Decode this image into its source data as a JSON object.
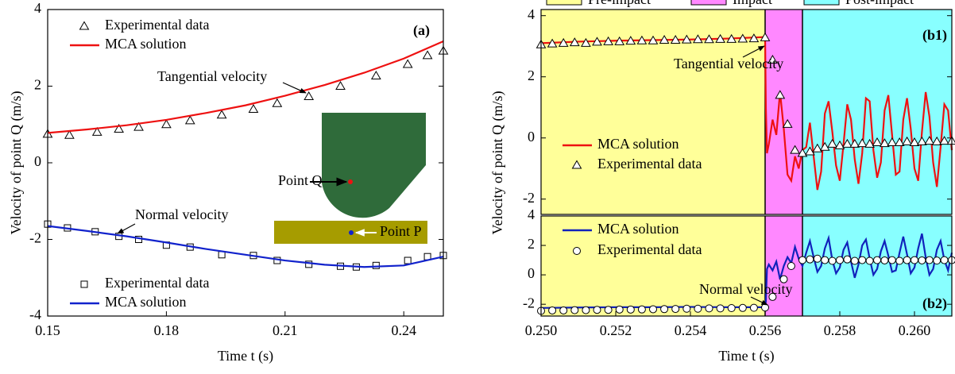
{
  "chart_data": [
    {
      "type": "line",
      "xlabel": "Time t (s)",
      "ylabel": "Velocity of point Q  (m/s)",
      "xlim": [
        0.15,
        0.25
      ],
      "ylim": [
        -4,
        4
      ],
      "xticks": [
        0.15,
        0.18,
        0.21,
        0.24
      ],
      "yticks": [
        -4,
        -2,
        0,
        2,
        4
      ],
      "annotations": [
        "(a)",
        "Tangential velocity",
        "Normal velocity",
        "Point Q",
        "Point P"
      ],
      "series": [
        {
          "name": "Experimental data",
          "style": "triangle",
          "color": "#000000",
          "x": [
            0.15,
            0.1555,
            0.1625,
            0.168,
            0.173,
            0.18,
            0.186,
            0.194,
            0.202,
            0.208,
            0.216,
            0.224,
            0.233,
            0.241,
            0.246,
            0.25
          ],
          "values": [
            0.75,
            0.72,
            0.8,
            0.88,
            0.93,
            1.0,
            1.1,
            1.25,
            1.4,
            1.55,
            1.73,
            2.0,
            2.27,
            2.57,
            2.8,
            2.92
          ]
        },
        {
          "name": "MCA solution",
          "style": "line",
          "color": "#ee1111",
          "x": [
            0.15,
            0.16,
            0.17,
            0.18,
            0.19,
            0.2,
            0.21,
            0.22,
            0.23,
            0.24,
            0.25
          ],
          "values": [
            0.78,
            0.87,
            0.98,
            1.12,
            1.3,
            1.5,
            1.75,
            2.03,
            2.35,
            2.72,
            3.17
          ]
        },
        {
          "name": "Experimental data",
          "style": "square",
          "color": "#000000",
          "x": [
            0.15,
            0.155,
            0.162,
            0.168,
            0.173,
            0.18,
            0.186,
            0.194,
            0.202,
            0.208,
            0.216,
            0.224,
            0.228,
            0.233,
            0.241,
            0.246,
            0.25
          ],
          "values": [
            -1.6,
            -1.7,
            -1.8,
            -1.92,
            -2.0,
            -2.15,
            -2.2,
            -2.4,
            -2.42,
            -2.55,
            -2.65,
            -2.7,
            -2.72,
            -2.68,
            -2.55,
            -2.45,
            -2.42
          ]
        },
        {
          "name": "MCA solution",
          "style": "line",
          "color": "#1122cc",
          "x": [
            0.15,
            0.16,
            0.17,
            0.18,
            0.19,
            0.2,
            0.21,
            0.22,
            0.23,
            0.24,
            0.25
          ],
          "values": [
            -1.65,
            -1.78,
            -1.92,
            -2.08,
            -2.25,
            -2.4,
            -2.55,
            -2.66,
            -2.72,
            -2.68,
            -2.45
          ]
        }
      ]
    },
    {
      "type": "line",
      "xlim": [
        0.25,
        0.261
      ],
      "ylim": [
        -2.5,
        4.2
      ],
      "yticks": [
        -2,
        0,
        2,
        4
      ],
      "annotations": [
        "(b1)",
        "Tangential velocity"
      ],
      "regions": [
        {
          "name": "Pre-impact",
          "color": "#ffff99",
          "start": 0.25,
          "end": 0.256
        },
        {
          "name": "Impact",
          "color": "#ff88ff",
          "start": 0.256,
          "end": 0.257
        },
        {
          "name": "Post-impact",
          "color": "#88ffff",
          "start": 0.257,
          "end": 0.261
        }
      ],
      "series": [
        {
          "name": "MCA solution",
          "style": "line",
          "color": "#ee1111",
          "x": [
            0.25,
            0.251,
            0.252,
            0.253,
            0.254,
            0.255,
            0.256,
            0.25602,
            0.25605,
            0.2561,
            0.2562,
            0.2563,
            0.2564,
            0.2565,
            0.2566,
            0.2567,
            0.2568,
            0.2569,
            0.257,
            0.2571,
            0.2572,
            0.2573,
            0.2574,
            0.2575,
            0.2576,
            0.2577,
            0.2578,
            0.2579,
            0.258,
            0.2581,
            0.2582,
            0.2583,
            0.2584,
            0.2585,
            0.2586,
            0.2587,
            0.2588,
            0.2589,
            0.259,
            0.2591,
            0.2592,
            0.2593,
            0.2594,
            0.2595,
            0.2596,
            0.2597,
            0.2598,
            0.2599,
            0.26,
            0.2601,
            0.2602,
            0.2603,
            0.2604,
            0.2605,
            0.2606,
            0.2607,
            0.2608,
            0.2609,
            0.261
          ],
          "values": [
            3.1,
            3.15,
            3.18,
            3.2,
            3.22,
            3.25,
            3.3,
            1.0,
            -0.5,
            -0.2,
            0.6,
            0.1,
            1.5,
            0.3,
            -1.2,
            -1.4,
            -0.6,
            -1.0,
            -0.4,
            -0.3,
            0.5,
            -0.6,
            -1.7,
            -1.1,
            0.8,
            1.2,
            0.2,
            -0.9,
            -1.4,
            -0.2,
            1.1,
            0.6,
            -0.7,
            -1.5,
            -0.5,
            1.3,
            1.2,
            -0.4,
            -1.3,
            -0.8,
            0.9,
            1.4,
            0.1,
            -1.2,
            -1.1,
            0.6,
            1.3,
            0.3,
            -1.0,
            -1.4,
            0.2,
            1.5,
            0.7,
            -0.8,
            -1.6,
            -0.3,
            1.1,
            0.9,
            -0.4
          ]
        },
        {
          "name": "Experimental data",
          "style": "triangle",
          "color": "#000000",
          "x": [
            0.25,
            0.2503,
            0.2506,
            0.2509,
            0.2512,
            0.2515,
            0.2518,
            0.2521,
            0.2524,
            0.2527,
            0.253,
            0.2533,
            0.2536,
            0.2539,
            0.2542,
            0.2545,
            0.2548,
            0.2551,
            0.2554,
            0.2557,
            0.256,
            0.2562,
            0.2564,
            0.2566,
            0.2568,
            0.257,
            0.2572,
            0.2574,
            0.2576,
            0.2578,
            0.258,
            0.2582,
            0.2584,
            0.2586,
            0.2588,
            0.259,
            0.2592,
            0.2594,
            0.2596,
            0.2598,
            0.26,
            0.2602,
            0.2604,
            0.2606,
            0.2608,
            0.261
          ],
          "values": [
            3.05,
            3.08,
            3.1,
            3.12,
            3.1,
            3.14,
            3.15,
            3.15,
            3.17,
            3.18,
            3.18,
            3.2,
            3.2,
            3.21,
            3.22,
            3.22,
            3.23,
            3.23,
            3.24,
            3.25,
            3.28,
            2.55,
            1.4,
            0.45,
            -0.4,
            -0.5,
            -0.45,
            -0.35,
            -0.3,
            -0.2,
            -0.25,
            -0.2,
            -0.2,
            -0.18,
            -0.2,
            -0.15,
            -0.18,
            -0.15,
            -0.15,
            -0.12,
            -0.15,
            -0.12,
            -0.1,
            -0.12,
            -0.1,
            -0.1
          ]
        }
      ]
    },
    {
      "type": "line",
      "xlabel": "Time t (s)",
      "ylabel": "Velocity of point Q (m/s)",
      "xlim": [
        0.25,
        0.261
      ],
      "ylim": [
        -2.8,
        4
      ],
      "yticks": [
        -2,
        0,
        2,
        4
      ],
      "xticks": [
        {
          "value": 0.25,
          "label": "0.250"
        },
        0.252,
        0.254,
        0.256,
        0.258,
        {
          "value": 0.26,
          "label": "0.260"
        }
      ],
      "annotations": [
        "(b2)",
        "Normal velocity"
      ],
      "series": [
        {
          "name": "MCA solution",
          "style": "line",
          "color": "#1122bb",
          "x": [
            0.25,
            0.251,
            0.252,
            0.253,
            0.254,
            0.255,
            0.256,
            0.25602,
            0.25605,
            0.2561,
            0.2562,
            0.2563,
            0.2564,
            0.2565,
            0.2566,
            0.2567,
            0.2568,
            0.2569,
            0.257,
            0.2571,
            0.2572,
            0.2573,
            0.2574,
            0.2575,
            0.2576,
            0.2577,
            0.2578,
            0.2579,
            0.258,
            0.2581,
            0.2582,
            0.2583,
            0.2584,
            0.2585,
            0.2586,
            0.2587,
            0.2588,
            0.2589,
            0.259,
            0.2591,
            0.2592,
            0.2593,
            0.2594,
            0.2595,
            0.2596,
            0.2597,
            0.2598,
            0.2599,
            0.26,
            0.2601,
            0.2602,
            0.2603,
            0.2604,
            0.2605,
            0.2606,
            0.2607,
            0.2608,
            0.2609,
            0.261
          ],
          "values": [
            -2.25,
            -2.22,
            -2.2,
            -2.2,
            -2.18,
            -2.2,
            -2.2,
            -1.8,
            0.4,
            0.7,
            0.3,
            0.9,
            -0.3,
            0.6,
            1.2,
            0.8,
            1.9,
            1.1,
            0.6,
            1.5,
            2.3,
            1.2,
            0.2,
            0.6,
            1.8,
            2.5,
            1.0,
            0.1,
            0.5,
            1.7,
            2.2,
            0.9,
            -0.2,
            0.7,
            2.0,
            2.4,
            1.1,
            0.0,
            0.4,
            1.6,
            2.3,
            1.3,
            0.2,
            0.3,
            1.5,
            2.6,
            1.4,
            0.1,
            0.5,
            1.8,
            2.8,
            1.2,
            0.0,
            0.4,
            1.7,
            2.3,
            1.0,
            0.3,
            1.5
          ]
        },
        {
          "name": "Experimental data",
          "style": "circle",
          "color": "#000000",
          "x": [
            0.25,
            0.2503,
            0.2506,
            0.2509,
            0.2512,
            0.2515,
            0.2518,
            0.2521,
            0.2524,
            0.2527,
            0.253,
            0.2533,
            0.2536,
            0.2539,
            0.2542,
            0.2545,
            0.2548,
            0.2551,
            0.2554,
            0.2557,
            0.256,
            0.2562,
            0.2565,
            0.2567,
            0.257,
            0.2572,
            0.2574,
            0.2576,
            0.2578,
            0.258,
            0.2582,
            0.2584,
            0.2586,
            0.2588,
            0.259,
            0.2592,
            0.2594,
            0.2596,
            0.2598,
            0.26,
            0.2602,
            0.2604,
            0.2606,
            0.2608,
            0.261
          ],
          "values": [
            -2.45,
            -2.42,
            -2.42,
            -2.4,
            -2.4,
            -2.38,
            -2.38,
            -2.36,
            -2.36,
            -2.35,
            -2.34,
            -2.33,
            -2.32,
            -2.3,
            -2.3,
            -2.28,
            -2.28,
            -2.26,
            -2.25,
            -2.24,
            -2.22,
            -1.5,
            -0.3,
            0.6,
            1.0,
            1.05,
            1.1,
            1.0,
            0.95,
            1.0,
            1.05,
            0.95,
            1.0,
            0.95,
            1.0,
            0.98,
            1.0,
            0.95,
            1.0,
            1.0,
            0.98,
            1.0,
            0.97,
            1.0,
            1.0
          ]
        }
      ]
    }
  ]
}
